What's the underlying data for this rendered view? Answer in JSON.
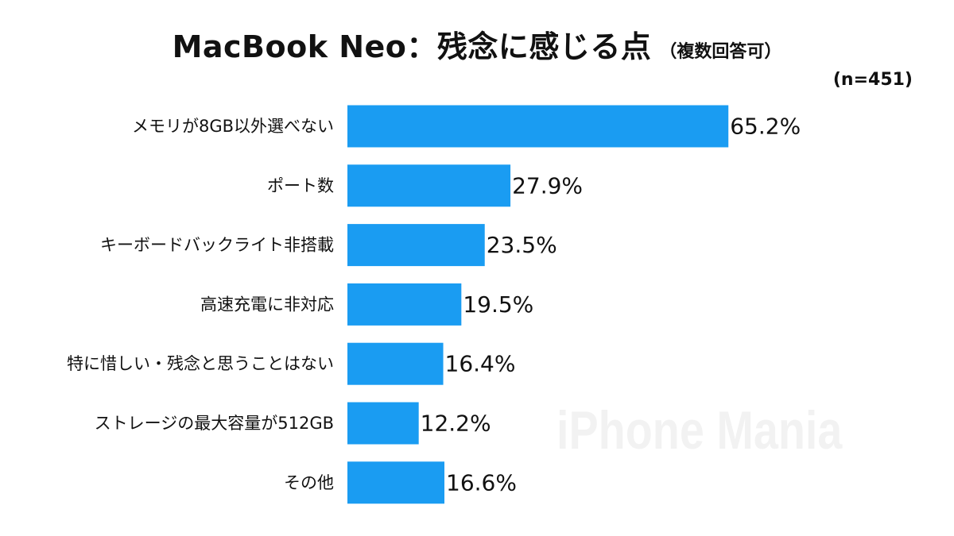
{
  "header": {
    "title": "MacBook Neo：残念に感じる点",
    "subtitle": "（複数回答可）",
    "sample_size": "(n=451)"
  },
  "watermark": "iPhone Mania",
  "chart_data": {
    "type": "bar",
    "orientation": "horizontal",
    "categories": [
      "メモリが8GB以外選べない",
      "ポート数",
      "キーボードバックライト非搭載",
      "高速充電に非対応",
      "特に惜しい・残念と思うことはない",
      "ストレージの最大容量が512GB",
      "その他"
    ],
    "values": [
      65.2,
      27.9,
      23.5,
      19.5,
      16.4,
      12.2,
      16.6
    ],
    "value_labels": [
      "65.2%",
      "27.9%",
      "23.5%",
      "19.5%",
      "16.4%",
      "12.2%",
      "16.6%"
    ],
    "unit": "%",
    "xlim": [
      0,
      100
    ],
    "bar_color": "#1a9cf2",
    "grid": false,
    "legend": "none"
  }
}
